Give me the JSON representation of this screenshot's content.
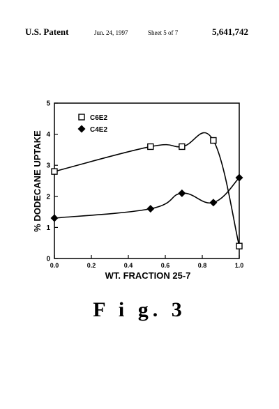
{
  "header": {
    "left": "U.S. Patent",
    "date": "Jun. 24, 1997",
    "sheet": "Sheet 5 of 7",
    "patent_number": "5,641,742"
  },
  "figure_caption": "F i g.   3",
  "chart_data": {
    "type": "line",
    "xlabel": "WT. FRACTION 25-7",
    "ylabel": "% DODECANE UPTAKE",
    "xlim": [
      0,
      1.0
    ],
    "ylim": [
      0,
      5
    ],
    "x_ticks": [
      "0.0",
      "0.2",
      "0.4",
      "0.6",
      "0.8",
      "1.0"
    ],
    "y_ticks": [
      "0",
      "1",
      "2",
      "3",
      "4",
      "5"
    ],
    "legend_position": "top-left",
    "grid": false,
    "series": [
      {
        "name": "C6E2",
        "marker": "open-square",
        "x": [
          0.0,
          0.52,
          0.69,
          0.86,
          1.0
        ],
        "y": [
          2.8,
          3.6,
          3.6,
          3.8,
          0.4
        ]
      },
      {
        "name": "C4E2",
        "marker": "filled-diamond",
        "x": [
          0.0,
          0.52,
          0.69,
          0.86,
          1.0
        ],
        "y": [
          1.3,
          1.6,
          2.1,
          1.8,
          2.6
        ]
      }
    ]
  }
}
